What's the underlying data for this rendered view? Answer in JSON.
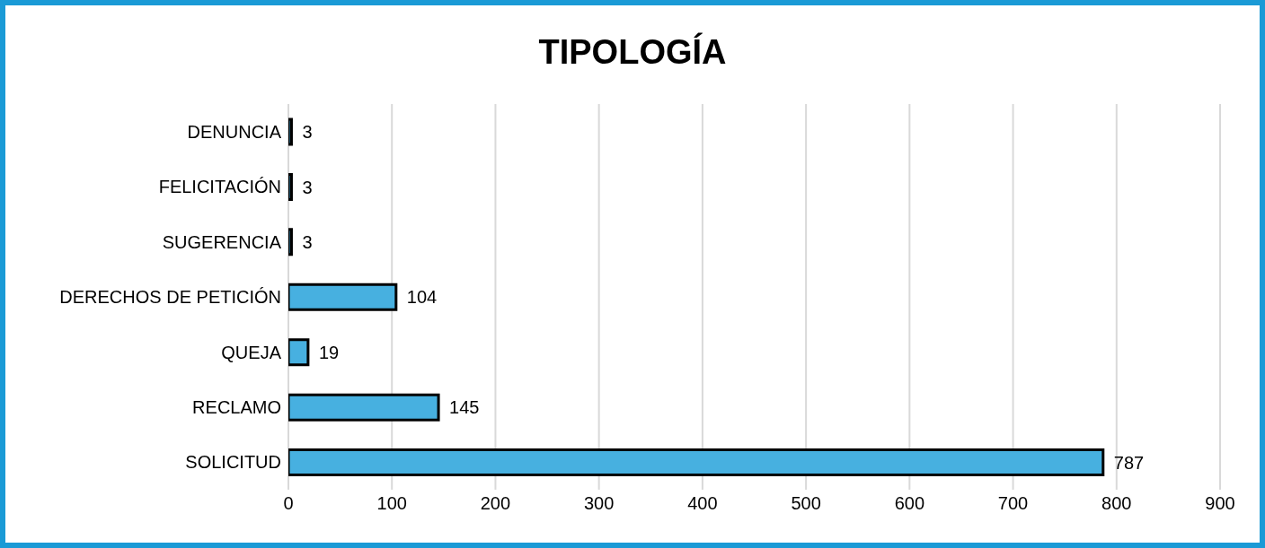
{
  "chart_data": {
    "type": "bar",
    "orientation": "horizontal",
    "title": "TIPOLOGÍA",
    "categories": [
      "DENUNCIA",
      "FELICITACIÓN",
      "SUGERENCIA",
      "DERECHOS DE PETICIÓN",
      "QUEJA",
      "RECLAMO",
      "SOLICITUD"
    ],
    "values": [
      3,
      3,
      3,
      104,
      19,
      145,
      787
    ],
    "color": "#47b0e0",
    "xlim": [
      0,
      900
    ],
    "xticks": [
      0,
      100,
      200,
      300,
      400,
      500,
      600,
      700,
      800,
      900
    ],
    "grid": "x",
    "data_labels": true
  }
}
